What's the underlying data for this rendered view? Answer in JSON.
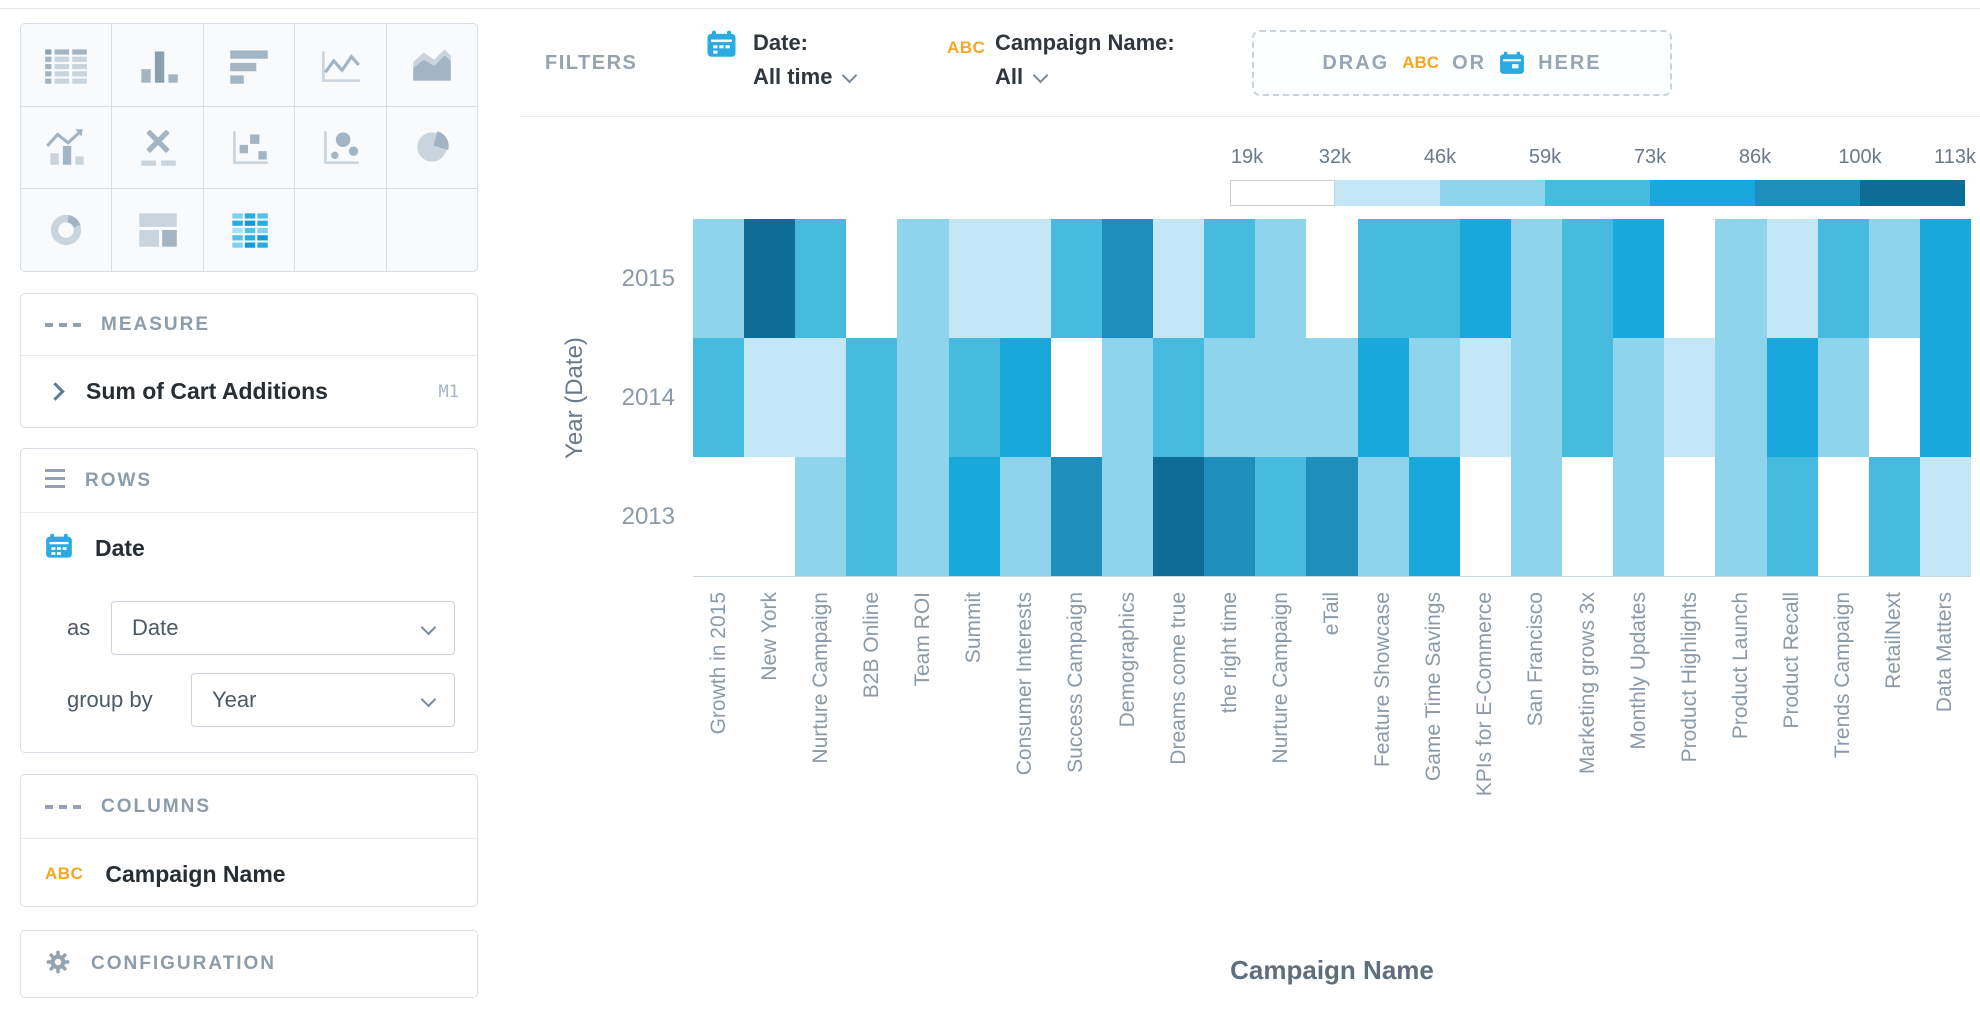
{
  "sidebar": {
    "chart_types": [
      {
        "name": "table",
        "selected": false
      },
      {
        "name": "bar-chart",
        "selected": false
      },
      {
        "name": "horizontal-bar-chart",
        "selected": false
      },
      {
        "name": "line-chart",
        "selected": false
      },
      {
        "name": "area-chart",
        "selected": false
      },
      {
        "name": "combo-chart",
        "selected": false
      },
      {
        "name": "crosstab",
        "selected": false
      },
      {
        "name": "scatter-plot",
        "selected": false
      },
      {
        "name": "bubble-chart",
        "selected": false
      },
      {
        "name": "pie-chart",
        "selected": false
      },
      {
        "name": "donut-chart",
        "selected": false
      },
      {
        "name": "treemap",
        "selected": false
      },
      {
        "name": "heatmap",
        "selected": true
      },
      {
        "name": "blank",
        "selected": false
      },
      {
        "name": "blank",
        "selected": false
      }
    ],
    "measure": {
      "title": "MEASURE",
      "items": [
        {
          "label": "Sum of Cart Additions",
          "badge": "M1"
        }
      ]
    },
    "rows": {
      "title": "ROWS",
      "field": "Date",
      "as_label": "as",
      "as_value": "Date",
      "group_by_label": "group by",
      "group_by_value": "Year"
    },
    "columns": {
      "title": "COLUMNS",
      "field_icon": "ABC",
      "field": "Campaign Name"
    },
    "configuration": {
      "title": "CONFIGURATION"
    }
  },
  "filters": {
    "title": "FILTERS",
    "date_filter": {
      "label": "Date:",
      "value": "All time"
    },
    "campaign_filter": {
      "icon": "ABC",
      "label": "Campaign Name:",
      "value": "All"
    },
    "drop_zone": {
      "drag": "DRAG",
      "abc": "ABC",
      "or": "OR",
      "here": "HERE"
    }
  },
  "legend": {
    "ticks": [
      "19k",
      "32k",
      "46k",
      "59k",
      "73k",
      "86k",
      "100k",
      "113k"
    ]
  },
  "palette": [
    "#ffffff",
    "#c3e7f5",
    "#8ed4ec",
    "#47bae0",
    "#18a8dc",
    "#1e8ebd",
    "#0d6d96"
  ],
  "chart_data": {
    "type": "heatmap",
    "xlabel": "Campaign Name",
    "ylabel": "Year (Date)",
    "measure": "Sum of Cart Additions",
    "legend_position": "top-right",
    "color_scale": {
      "min": 19000,
      "max": 113000,
      "tick_values": [
        19000,
        32000,
        46000,
        59000,
        73000,
        86000,
        100000,
        113000
      ],
      "tick_labels": [
        "19k",
        "32k",
        "46k",
        "59k",
        "73k",
        "86k",
        "100k",
        "113k"
      ]
    },
    "categories": [
      "Growth in 2015",
      "New York",
      "Nurture Campaign",
      "B2B Online",
      "Team ROI",
      "Summit",
      "Consumer Interests",
      "Success Campaign",
      "Demographics",
      "Dreams come true",
      "the right time",
      "Nurture Campaign",
      "eTail",
      "Feature Showcase",
      "Game Time Savings",
      "KPIs for E-Commerce",
      "San Francisco",
      "Marketing grows 3x",
      "Monthly Updates",
      "Product Highlights",
      "Product Launch",
      "Product Recall",
      "Trends Campaign",
      "RetailNext",
      "Data Matters"
    ],
    "rows": [
      "2015",
      "2014",
      "2013"
    ],
    "series": [
      {
        "name": "2015",
        "buckets": [
          2,
          6,
          3,
          0,
          2,
          1,
          1,
          3,
          5,
          1,
          3,
          2,
          0,
          3,
          3,
          4,
          2,
          3,
          4,
          0,
          2,
          1,
          3,
          2,
          4
        ],
        "approx_values": [
          53000,
          106000,
          66000,
          26000,
          53000,
          39000,
          39000,
          66000,
          93000,
          39000,
          66000,
          53000,
          26000,
          66000,
          66000,
          79000,
          53000,
          66000,
          79000,
          26000,
          53000,
          39000,
          66000,
          53000,
          79000
        ]
      },
      {
        "name": "2014",
        "buckets": [
          3,
          1,
          1,
          3,
          2,
          3,
          4,
          0,
          2,
          3,
          2,
          2,
          2,
          4,
          2,
          1,
          2,
          3,
          2,
          1,
          2,
          4,
          2,
          0,
          4
        ],
        "approx_values": [
          66000,
          39000,
          39000,
          66000,
          53000,
          66000,
          79000,
          26000,
          53000,
          66000,
          53000,
          53000,
          53000,
          79000,
          53000,
          39000,
          53000,
          66000,
          53000,
          39000,
          53000,
          79000,
          53000,
          26000,
          79000
        ]
      },
      {
        "name": "2013",
        "buckets": [
          0,
          0,
          2,
          3,
          2,
          4,
          2,
          5,
          2,
          6,
          5,
          3,
          5,
          2,
          4,
          0,
          2,
          0,
          2,
          0,
          2,
          3,
          0,
          3,
          1
        ],
        "approx_values": [
          26000,
          26000,
          53000,
          66000,
          53000,
          79000,
          53000,
          93000,
          53000,
          106000,
          93000,
          66000,
          93000,
          53000,
          79000,
          26000,
          53000,
          26000,
          53000,
          26000,
          53000,
          66000,
          26000,
          66000,
          39000
        ]
      }
    ]
  }
}
